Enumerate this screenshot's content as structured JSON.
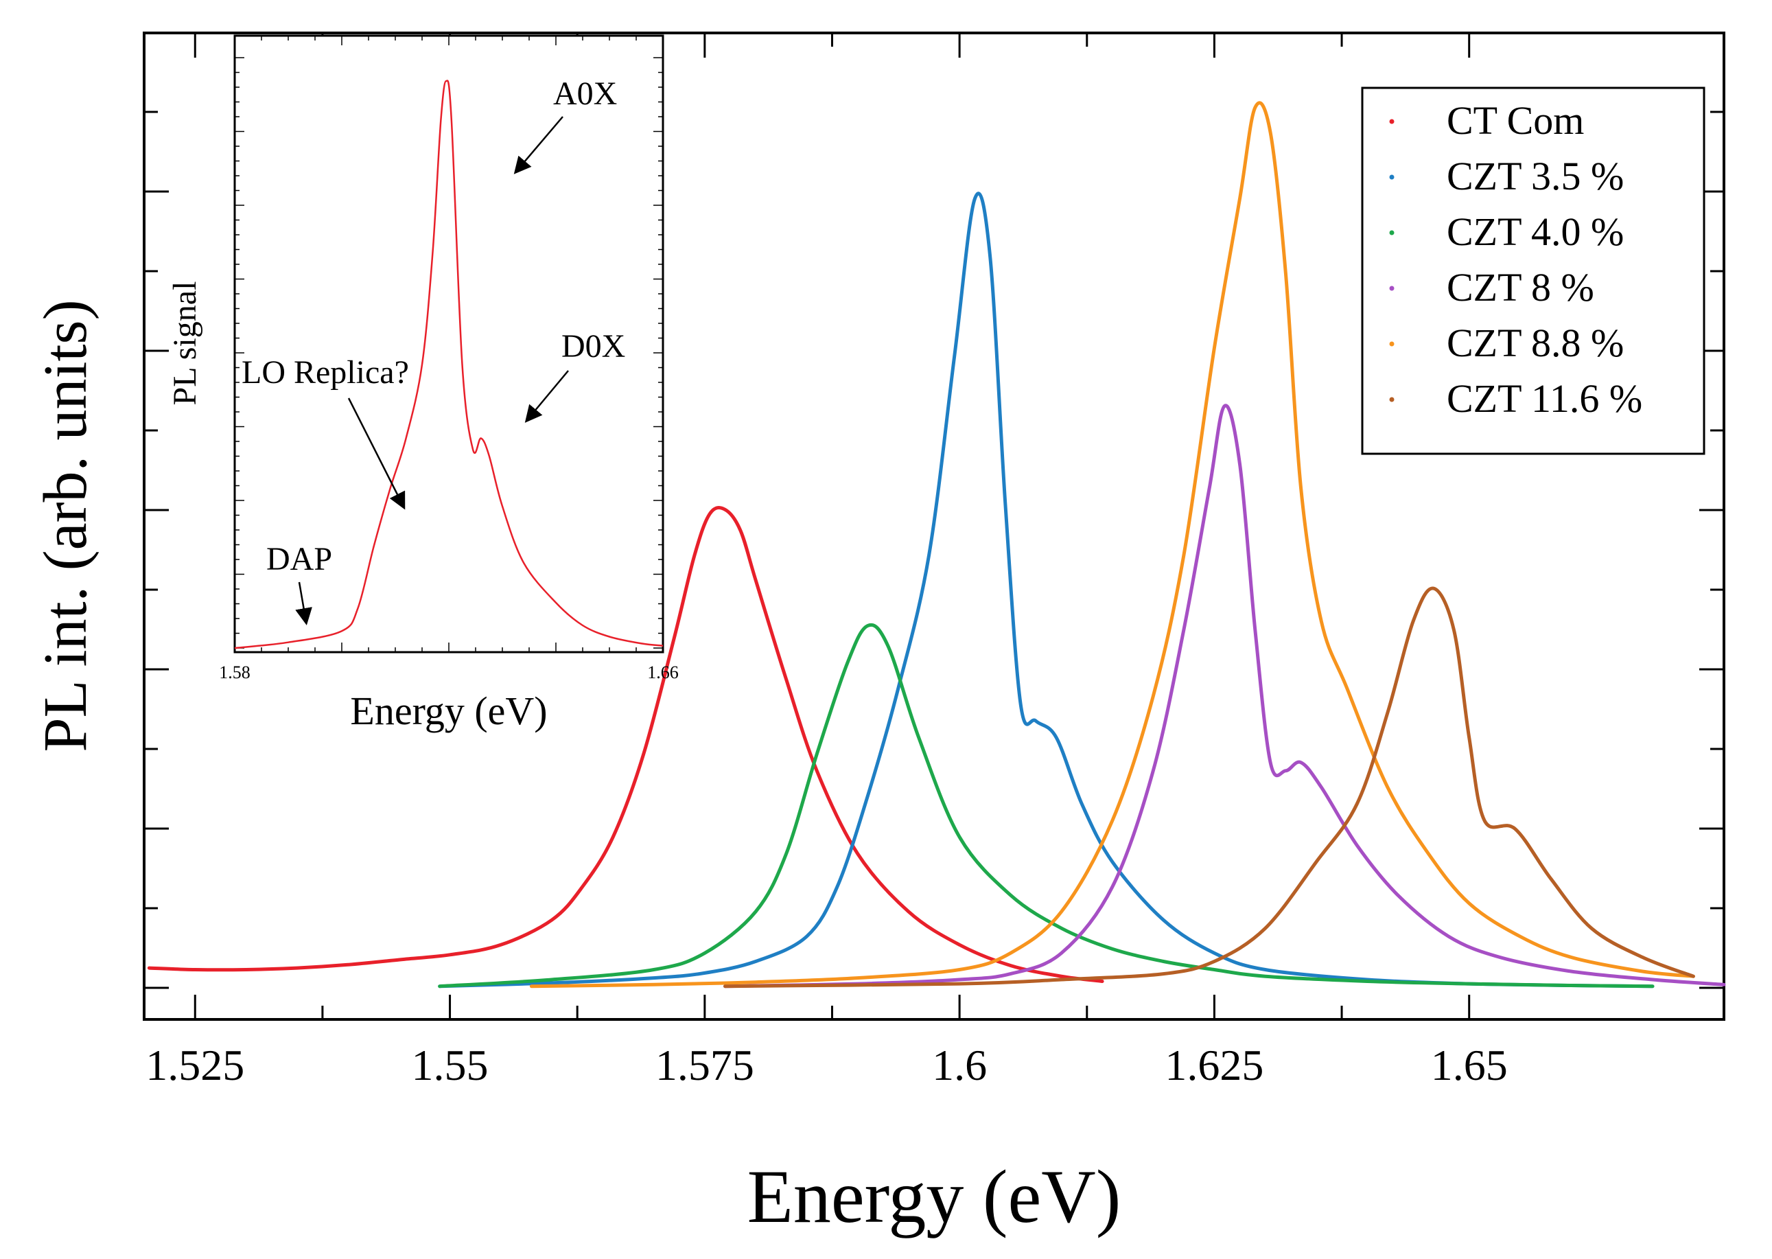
{
  "chart_data": {
    "type": "line",
    "xlabel": "Energy (eV)",
    "ylabel": "PL int. (arb. units)",
    "xlim": [
      1.52,
      1.675
    ],
    "ylim": [
      -0.04,
      1.15
    ],
    "x_ticks": [
      {
        "value": 1.525,
        "label": "1.525"
      },
      {
        "value": 1.55,
        "label": "1.55"
      },
      {
        "value": 1.575,
        "label": "1.575"
      },
      {
        "value": 1.6,
        "label": "1.6"
      },
      {
        "value": 1.625,
        "label": "1.625"
      },
      {
        "value": 1.65,
        "label": "1.65"
      }
    ],
    "series": [
      {
        "name": "CT Com",
        "color": "#e8202a",
        "points": [
          [
            1.5205,
            0.022
          ],
          [
            1.525,
            0.02
          ],
          [
            1.53,
            0.02
          ],
          [
            1.535,
            0.022
          ],
          [
            1.54,
            0.026
          ],
          [
            1.545,
            0.032
          ],
          [
            1.55,
            0.038
          ],
          [
            1.555,
            0.05
          ],
          [
            1.56,
            0.08
          ],
          [
            1.563,
            0.12
          ],
          [
            1.566,
            0.18
          ],
          [
            1.569,
            0.28
          ],
          [
            1.572,
            0.42
          ],
          [
            1.574,
            0.52
          ],
          [
            1.5755,
            0.57
          ],
          [
            1.577,
            0.575
          ],
          [
            1.5785,
            0.55
          ],
          [
            1.58,
            0.49
          ],
          [
            1.583,
            0.37
          ],
          [
            1.586,
            0.26
          ],
          [
            1.59,
            0.16
          ],
          [
            1.595,
            0.09
          ],
          [
            1.6,
            0.05
          ],
          [
            1.605,
            0.025
          ],
          [
            1.61,
            0.012
          ],
          [
            1.614,
            0.006
          ]
        ]
      },
      {
        "name": "CZT 3.5 %",
        "color": "#1f7fc4",
        "points": [
          [
            1.549,
            0.0
          ],
          [
            1.56,
            0.004
          ],
          [
            1.57,
            0.01
          ],
          [
            1.575,
            0.016
          ],
          [
            1.58,
            0.03
          ],
          [
            1.585,
            0.06
          ],
          [
            1.588,
            0.12
          ],
          [
            1.591,
            0.23
          ],
          [
            1.594,
            0.36
          ],
          [
            1.597,
            0.52
          ],
          [
            1.5995,
            0.76
          ],
          [
            1.6015,
            0.95
          ],
          [
            1.603,
            0.88
          ],
          [
            1.6045,
            0.58
          ],
          [
            1.606,
            0.34
          ],
          [
            1.6075,
            0.32
          ],
          [
            1.6095,
            0.3
          ],
          [
            1.612,
            0.22
          ],
          [
            1.615,
            0.15
          ],
          [
            1.62,
            0.08
          ],
          [
            1.625,
            0.04
          ],
          [
            1.63,
            0.02
          ],
          [
            1.64,
            0.008
          ],
          [
            1.65,
            0.003
          ],
          [
            1.66,
            0.001
          ],
          [
            1.668,
            0.0
          ]
        ]
      },
      {
        "name": "CZT 4.0 %",
        "color": "#1ea84b",
        "points": [
          [
            1.549,
            0.0
          ],
          [
            1.56,
            0.008
          ],
          [
            1.57,
            0.02
          ],
          [
            1.575,
            0.04
          ],
          [
            1.58,
            0.09
          ],
          [
            1.583,
            0.16
          ],
          [
            1.586,
            0.28
          ],
          [
            1.589,
            0.39
          ],
          [
            1.591,
            0.435
          ],
          [
            1.593,
            0.41
          ],
          [
            1.596,
            0.3
          ],
          [
            1.6,
            0.18
          ],
          [
            1.605,
            0.11
          ],
          [
            1.61,
            0.07
          ],
          [
            1.615,
            0.045
          ],
          [
            1.62,
            0.03
          ],
          [
            1.625,
            0.02
          ],
          [
            1.63,
            0.012
          ],
          [
            1.64,
            0.006
          ],
          [
            1.65,
            0.003
          ],
          [
            1.66,
            0.001
          ],
          [
            1.668,
            0.0
          ]
        ]
      },
      {
        "name": "CZT 8 %",
        "color": "#a64fc4",
        "points": [
          [
            1.577,
            0.0
          ],
          [
            1.59,
            0.003
          ],
          [
            1.6,
            0.008
          ],
          [
            1.605,
            0.015
          ],
          [
            1.61,
            0.04
          ],
          [
            1.615,
            0.12
          ],
          [
            1.619,
            0.26
          ],
          [
            1.622,
            0.43
          ],
          [
            1.6245,
            0.6
          ],
          [
            1.626,
            0.7
          ],
          [
            1.6275,
            0.63
          ],
          [
            1.629,
            0.43
          ],
          [
            1.6305,
            0.27
          ],
          [
            1.632,
            0.26
          ],
          [
            1.6335,
            0.27
          ],
          [
            1.6355,
            0.24
          ],
          [
            1.639,
            0.17
          ],
          [
            1.643,
            0.11
          ],
          [
            1.648,
            0.06
          ],
          [
            1.653,
            0.035
          ],
          [
            1.66,
            0.018
          ],
          [
            1.668,
            0.008
          ],
          [
            1.675,
            0.002
          ]
        ]
      },
      {
        "name": "CZT 8.8 %",
        "color": "#f7941d",
        "points": [
          [
            1.558,
            0.0
          ],
          [
            1.57,
            0.002
          ],
          [
            1.58,
            0.005
          ],
          [
            1.59,
            0.01
          ],
          [
            1.6,
            0.02
          ],
          [
            1.605,
            0.04
          ],
          [
            1.61,
            0.09
          ],
          [
            1.615,
            0.2
          ],
          [
            1.619,
            0.35
          ],
          [
            1.622,
            0.52
          ],
          [
            1.625,
            0.77
          ],
          [
            1.6275,
            0.95
          ],
          [
            1.629,
            1.06
          ],
          [
            1.6305,
            1.03
          ],
          [
            1.632,
            0.86
          ],
          [
            1.6335,
            0.6
          ],
          [
            1.6355,
            0.44
          ],
          [
            1.638,
            0.36
          ],
          [
            1.642,
            0.24
          ],
          [
            1.646,
            0.16
          ],
          [
            1.65,
            0.1
          ],
          [
            1.655,
            0.06
          ],
          [
            1.66,
            0.035
          ],
          [
            1.667,
            0.018
          ],
          [
            1.672,
            0.012
          ]
        ]
      },
      {
        "name": "CZT 11.6 %",
        "color": "#b65f25",
        "points": [
          [
            1.577,
            0.0
          ],
          [
            1.6,
            0.003
          ],
          [
            1.61,
            0.008
          ],
          [
            1.62,
            0.015
          ],
          [
            1.625,
            0.03
          ],
          [
            1.63,
            0.07
          ],
          [
            1.635,
            0.15
          ],
          [
            1.639,
            0.22
          ],
          [
            1.642,
            0.33
          ],
          [
            1.6445,
            0.44
          ],
          [
            1.6465,
            0.48
          ],
          [
            1.6485,
            0.43
          ],
          [
            1.65,
            0.3
          ],
          [
            1.6515,
            0.2
          ],
          [
            1.6545,
            0.19
          ],
          [
            1.658,
            0.13
          ],
          [
            1.662,
            0.07
          ],
          [
            1.667,
            0.035
          ],
          [
            1.672,
            0.012
          ]
        ]
      }
    ],
    "inset": {
      "xlabel": "Energy (eV)",
      "ylabel": "PL signal",
      "xlim": [
        1.58,
        1.66
      ],
      "ylim": [
        0,
        1.08
      ],
      "x_ticks": [
        {
          "value": 1.58,
          "label": "1.58"
        },
        {
          "value": 1.66,
          "label": "1.66"
        }
      ],
      "series": [
        {
          "name": "CT Com",
          "color": "#e8202a",
          "points": [
            [
              1.58,
              0.0
            ],
            [
              1.59,
              0.01
            ],
            [
              1.6,
              0.03
            ],
            [
              1.603,
              0.07
            ],
            [
              1.606,
              0.18
            ],
            [
              1.609,
              0.28
            ],
            [
              1.612,
              0.37
            ],
            [
              1.615,
              0.5
            ],
            [
              1.617,
              0.7
            ],
            [
              1.6185,
              0.93
            ],
            [
              1.6195,
              1.0
            ],
            [
              1.6205,
              0.93
            ],
            [
              1.6225,
              0.5
            ],
            [
              1.6245,
              0.35
            ],
            [
              1.626,
              0.37
            ],
            [
              1.6275,
              0.34
            ],
            [
              1.63,
              0.25
            ],
            [
              1.634,
              0.15
            ],
            [
              1.64,
              0.08
            ],
            [
              1.645,
              0.04
            ],
            [
              1.65,
              0.02
            ],
            [
              1.656,
              0.008
            ],
            [
              1.66,
              0.004
            ]
          ]
        }
      ],
      "annotations": [
        {
          "text": "A0X"
        },
        {
          "text": "D0X"
        },
        {
          "text": "LO Replica?"
        },
        {
          "text": "DAP"
        }
      ]
    }
  }
}
